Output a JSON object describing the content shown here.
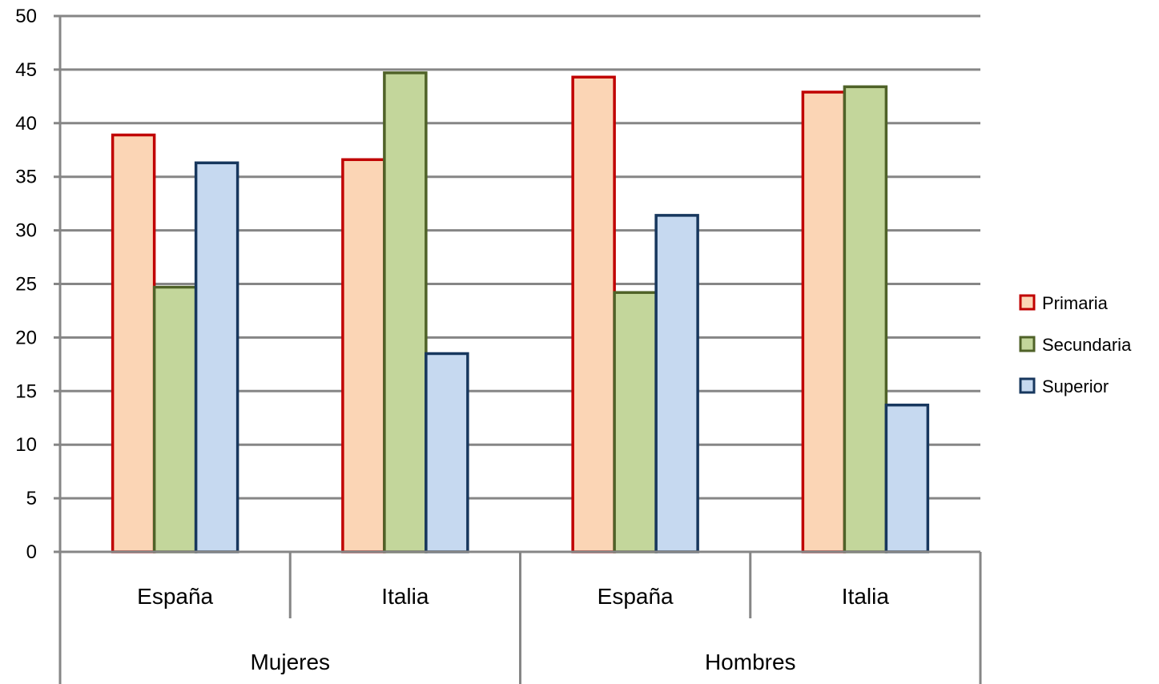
{
  "chart_data": {
    "type": "bar",
    "groups": [
      {
        "label": "Mujeres",
        "categories": [
          "España",
          "Italia"
        ]
      },
      {
        "label": "Hombres",
        "categories": [
          "España",
          "Italia"
        ]
      }
    ],
    "categories": [
      "España",
      "Italia",
      "España",
      "Italia"
    ],
    "series": [
      {
        "name": "Primaria",
        "values": [
          38.9,
          36.6,
          44.3,
          42.9
        ],
        "fill": "#FBD5B5",
        "stroke": "#C00000"
      },
      {
        "name": "Secundaria",
        "values": [
          24.7,
          44.7,
          24.2,
          43.4
        ],
        "fill": "#C3D69B",
        "stroke": "#4F6228"
      },
      {
        "name": "Superior",
        "values": [
          36.3,
          18.5,
          31.4,
          13.7
        ],
        "fill": "#C6D9F0",
        "stroke": "#17375E"
      }
    ],
    "ylim": [
      0,
      50
    ],
    "yticks": [
      "0",
      "5",
      "10",
      "15",
      "20",
      "25",
      "30",
      "35",
      "40",
      "45",
      "50"
    ],
    "grid": true,
    "legend_position": "right",
    "title": "",
    "xlabel": "",
    "ylabel": ""
  }
}
